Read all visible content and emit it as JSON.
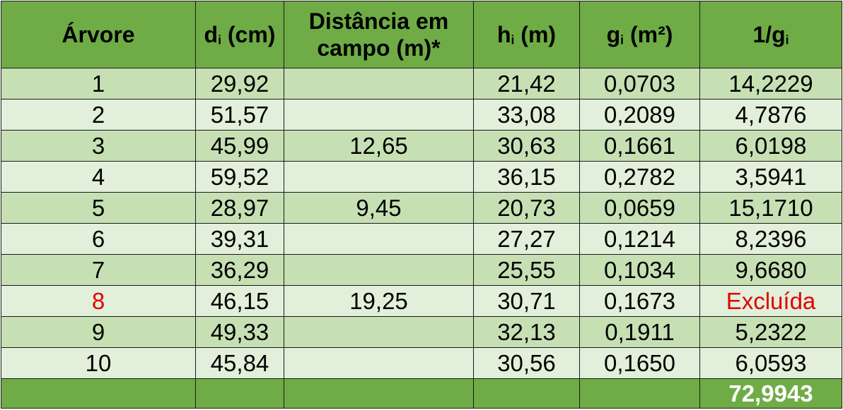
{
  "table": {
    "headers": [
      {
        "text": "Árvore",
        "sub": "",
        "suffix": ""
      },
      {
        "text": "d",
        "sub": "i",
        "suffix": " (cm)"
      },
      {
        "text": "Distância em campo (m)*",
        "sub": "",
        "suffix": ""
      },
      {
        "text": "h",
        "sub": "i",
        "suffix": " (m)"
      },
      {
        "text": "g",
        "sub": "i",
        "suffix": " (m²)"
      },
      {
        "text": "1/g",
        "sub": "i",
        "suffix": ""
      }
    ],
    "rows": [
      {
        "arvore": "1",
        "di": "29,92",
        "distancia": "",
        "hi": "21,42",
        "gi": "0,0703",
        "inv_gi": "14,2229",
        "excluded": false
      },
      {
        "arvore": "2",
        "di": "51,57",
        "distancia": "",
        "hi": "33,08",
        "gi": "0,2089",
        "inv_gi": "4,7876",
        "excluded": false
      },
      {
        "arvore": "3",
        "di": "45,99",
        "distancia": "12,65",
        "hi": "30,63",
        "gi": "0,1661",
        "inv_gi": "6,0198",
        "excluded": false
      },
      {
        "arvore": "4",
        "di": "59,52",
        "distancia": "",
        "hi": "36,15",
        "gi": "0,2782",
        "inv_gi": "3,5941",
        "excluded": false
      },
      {
        "arvore": "5",
        "di": "28,97",
        "distancia": "9,45",
        "hi": "20,73",
        "gi": "0,0659",
        "inv_gi": "15,1710",
        "excluded": false
      },
      {
        "arvore": "6",
        "di": "39,31",
        "distancia": "",
        "hi": "27,27",
        "gi": "0,1214",
        "inv_gi": "8,2396",
        "excluded": false
      },
      {
        "arvore": "7",
        "di": "36,29",
        "distancia": "",
        "hi": "25,55",
        "gi": "0,1034",
        "inv_gi": "9,6680",
        "excluded": false
      },
      {
        "arvore": "8",
        "di": "46,15",
        "distancia": "19,25",
        "hi": "30,71",
        "gi": "0,1673",
        "inv_gi": "Excluída",
        "excluded": true
      },
      {
        "arvore": "9",
        "di": "49,33",
        "distancia": "",
        "hi": "32,13",
        "gi": "0,1911",
        "inv_gi": "5,2322",
        "excluded": false
      },
      {
        "arvore": "10",
        "di": "45,84",
        "distancia": "",
        "hi": "30,56",
        "gi": "0,1650",
        "inv_gi": "6,0593",
        "excluded": false
      }
    ],
    "total": "72,9943"
  },
  "colors": {
    "header_bg": "#6fac46",
    "row_odd_bg": "#c6e0b4",
    "row_even_bg": "#e2efda",
    "excluded_text": "#e00000",
    "total_text": "#ffffff"
  }
}
